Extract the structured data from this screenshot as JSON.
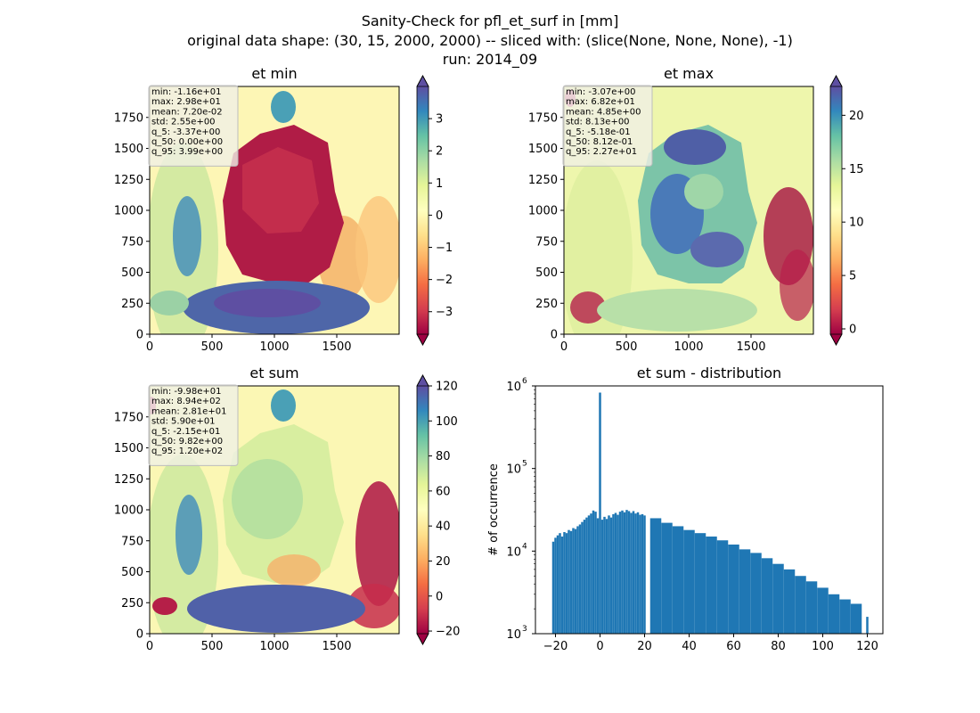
{
  "figure": {
    "title_lines": [
      "Sanity-Check for pfl_et_surf in [mm]",
      "original data shape: (30, 15, 2000, 2000) -- sliced with: (slice(None, None, None), -1)",
      "run: 2014_09"
    ]
  },
  "chart_data": [
    {
      "type": "heatmap",
      "title": "et min",
      "xlabel": "",
      "ylabel": "",
      "xlim": [
        0,
        2000
      ],
      "ylim": [
        0,
        2000
      ],
      "x_ticks": [
        0,
        500,
        1000,
        1500
      ],
      "y_ticks": [
        0,
        250,
        500,
        750,
        1000,
        1250,
        1500,
        1750
      ],
      "colormap": "Spectral",
      "colorbar": {
        "vmin": -3.7,
        "vmax": 4.0,
        "ticks": [
          -3,
          -2,
          -1,
          0,
          1,
          2,
          3
        ],
        "extend": "both"
      },
      "stats": [
        "min: -1.16e+01",
        "max: 2.98e+01",
        "mean: 7.20e-02",
        "std: 2.55e+00",
        "q_5: -3.37e+00",
        "q_50: 0.00e+00",
        "q_95: 3.99e+00"
      ]
    },
    {
      "type": "heatmap",
      "title": "et max",
      "xlabel": "",
      "ylabel": "",
      "xlim": [
        0,
        2000
      ],
      "ylim": [
        0,
        2000
      ],
      "x_ticks": [
        0,
        500,
        1000,
        1500
      ],
      "y_ticks": [
        0,
        250,
        500,
        750,
        1000,
        1250,
        1500,
        1750
      ],
      "colormap": "Spectral",
      "colorbar": {
        "vmin": -0.5,
        "vmax": 22.7,
        "ticks": [
          0,
          5,
          10,
          15,
          20
        ],
        "extend": "both"
      },
      "stats": [
        "min: -3.07e+00",
        "max: 6.82e+01",
        "mean: 4.85e+00",
        "std: 8.13e+00",
        "q_5: -5.18e-01",
        "q_50: 8.12e-01",
        "q_95: 2.27e+01"
      ]
    },
    {
      "type": "heatmap",
      "title": "et sum",
      "xlabel": "",
      "ylabel": "",
      "xlim": [
        0,
        2000
      ],
      "ylim": [
        0,
        2000
      ],
      "x_ticks": [
        0,
        500,
        1000,
        1500
      ],
      "y_ticks": [
        0,
        250,
        500,
        750,
        1000,
        1250,
        1500,
        1750
      ],
      "colormap": "Spectral",
      "colorbar": {
        "vmin": -21.5,
        "vmax": 120,
        "ticks": [
          -20,
          0,
          20,
          40,
          60,
          80,
          100,
          120
        ],
        "extend": "both"
      },
      "stats": [
        "min: -9.98e+01",
        "max: 8.94e+02",
        "mean: 2.81e+01",
        "std: 5.90e+01",
        "q_5: -2.15e+01",
        "q_50: 9.82e+00",
        "q_95: 1.20e+02"
      ]
    },
    {
      "type": "bar",
      "title": "et sum - distribution",
      "xlabel": "",
      "ylabel": "# of occurrence",
      "yscale": "log",
      "xlim": [
        -29,
        127
      ],
      "ylim": [
        1000,
        1000000
      ],
      "x_ticks": [
        -20,
        0,
        20,
        40,
        60,
        80,
        100,
        120
      ],
      "y_tick_labels": [
        {
          "value": 1000,
          "base": "10",
          "exp": "3"
        },
        {
          "value": 10000,
          "base": "10",
          "exp": "4"
        },
        {
          "value": 100000,
          "base": "10",
          "exp": "5"
        },
        {
          "value": 1000000,
          "base": "10",
          "exp": "6"
        }
      ],
      "bar_color": "#1f77b4",
      "x": [
        -21,
        -20,
        -19,
        -18,
        -17,
        -16,
        -15,
        -14,
        -13,
        -12,
        -11,
        -10,
        -9,
        -8,
        -7,
        -6,
        -5,
        -4,
        -3,
        -2,
        -1,
        0,
        1,
        2,
        3,
        4,
        5,
        6,
        7,
        8,
        9,
        10,
        11,
        12,
        13,
        14,
        15,
        16,
        17,
        18,
        19,
        20,
        25,
        30,
        35,
        40,
        45,
        50,
        55,
        60,
        65,
        70,
        75,
        80,
        85,
        90,
        95,
        100,
        105,
        110,
        115,
        120
      ],
      "values": [
        13000,
        14500,
        15500,
        16500,
        15000,
        17000,
        16500,
        18000,
        17500,
        19000,
        18500,
        20000,
        21000,
        22500,
        24000,
        25500,
        27000,
        28500,
        31000,
        30000,
        25000,
        830000,
        24000,
        26000,
        24500,
        27000,
        25500,
        28000,
        29000,
        27500,
        30000,
        31000,
        29500,
        31500,
        30500,
        29000,
        30500,
        28500,
        29500,
        27500,
        28000,
        27000,
        25000,
        22000,
        20000,
        18000,
        16500,
        15000,
        13500,
        12000,
        10500,
        9500,
        8200,
        7000,
        6000,
        5000,
        4300,
        3600,
        3000,
        2600,
        2300,
        1600
      ]
    }
  ]
}
